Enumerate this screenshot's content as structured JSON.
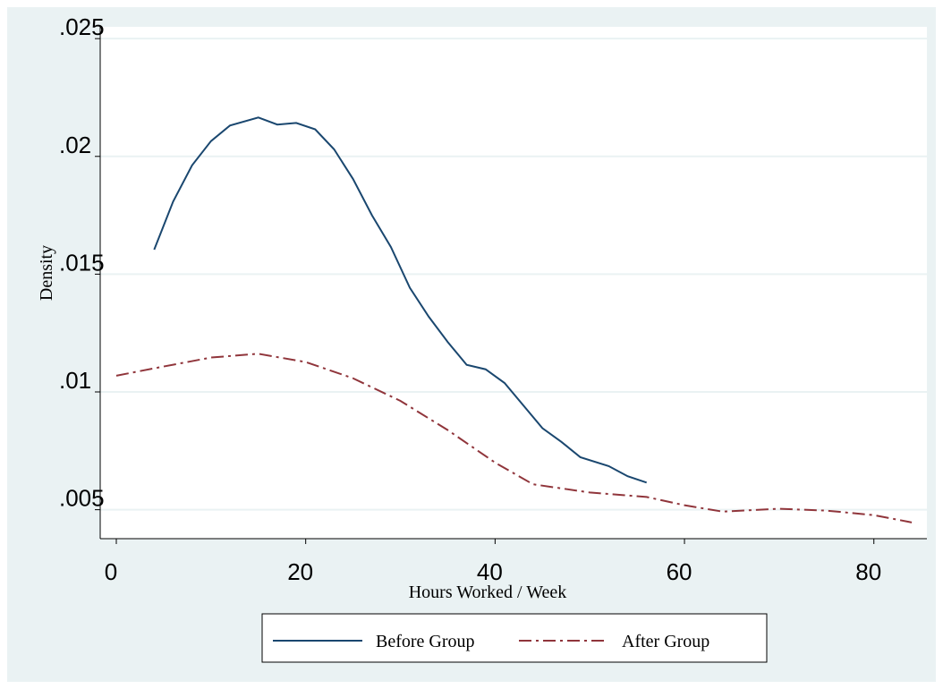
{
  "chart_data": {
    "type": "line",
    "y_label": "Density",
    "x_label": "Hours Worked / Week",
    "xlim": [
      -1.7,
      85.6
    ],
    "ylim": [
      0.00377,
      0.0255
    ],
    "xticks": [
      0,
      20,
      40,
      60,
      80
    ],
    "yticks": [
      {
        "value": 0.005,
        "label": ".005"
      },
      {
        "value": 0.01,
        "label": ".01"
      },
      {
        "value": 0.015,
        "label": ".015"
      },
      {
        "value": 0.02,
        "label": ".02"
      },
      {
        "value": 0.025,
        "label": ".025"
      }
    ],
    "grid": true,
    "legend": "bottom",
    "series": [
      {
        "name": "Before Group",
        "color": "#1a476f",
        "dash": "solid",
        "x": [
          4,
          6,
          8,
          10,
          12,
          15,
          17,
          19,
          21,
          23,
          25,
          27,
          29,
          31,
          33,
          35,
          37,
          39,
          41,
          43,
          45,
          47,
          49,
          52,
          54,
          56
        ],
        "values": [
          0.01604,
          0.01808,
          0.01962,
          0.02065,
          0.02131,
          0.02165,
          0.02135,
          0.02142,
          0.02115,
          0.0203,
          0.01904,
          0.0175,
          0.01615,
          0.01442,
          0.01319,
          0.01212,
          0.01115,
          0.01096,
          0.01038,
          0.00942,
          0.00846,
          0.00788,
          0.00723,
          0.00685,
          0.00642,
          0.00615
        ]
      },
      {
        "name": "After Group",
        "color": "#90353b",
        "dash": "dashdot",
        "x": [
          0,
          5,
          10,
          15,
          20,
          25,
          30,
          35,
          40,
          44,
          50,
          56,
          60,
          64,
          70,
          75,
          80,
          84
        ],
        "values": [
          0.01069,
          0.01108,
          0.01146,
          0.01162,
          0.01127,
          0.01058,
          0.00962,
          0.00838,
          0.007,
          0.00608,
          0.00573,
          0.00554,
          0.00519,
          0.00492,
          0.00504,
          0.00496,
          0.00477,
          0.00446
        ]
      }
    ]
  }
}
